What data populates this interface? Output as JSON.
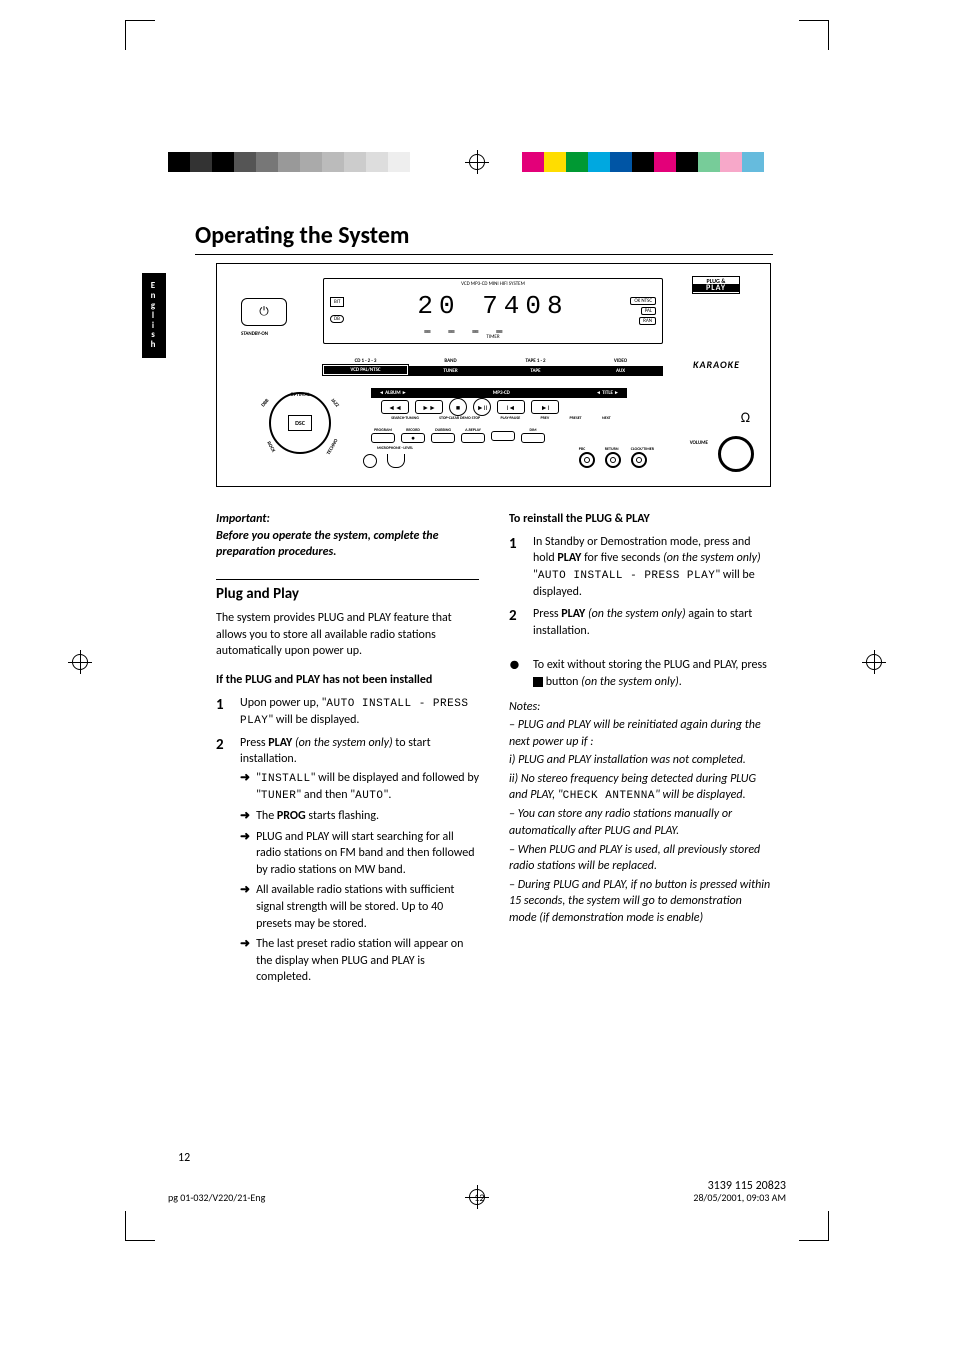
{
  "page": {
    "title": "Operating the System",
    "language_tab": "English",
    "page_number": "12",
    "footer_left": "pg 01-032/V220/21-Eng",
    "footer_center": "12",
    "footer_right": "28/05/2001, 09:03 AM",
    "doc_code": "3139 115 20823"
  },
  "colorbar_left": [
    "#000000",
    "#333333",
    "#000000",
    "#555555",
    "#777777",
    "#999999",
    "#aaaaaa",
    "#bbbbbb",
    "#cccccc",
    "#dddddd",
    "#eeeeee",
    "#ffffff"
  ],
  "colorbar_right": [
    "#e30079",
    "#ffdd00",
    "#009933",
    "#00a8e0",
    "#0055a5",
    "#000000",
    "#e30079",
    "#000000",
    "#77cc99",
    "#f7a8c9",
    "#66bbdd",
    "#ffffff"
  ],
  "device": {
    "header": "VCD MP3-CD MINI HIFI SYSTEM",
    "standby": "STANDBY-ON",
    "standby_icon": "⏻",
    "digits": "20  7408",
    "timer": "TIMER",
    "badge_bit": "BIT",
    "badge_db": "DB",
    "badge_ok_ntsc": "OK NTSC",
    "badge_pal": "PAL",
    "badge_ran": "RAN",
    "plugplay_top": "PLUG &",
    "plugplay_bot": "PLAY",
    "row1": [
      {
        "top": "CD 1 · 2 · 3",
        "main": "",
        "sub": "VCD PAL/NTSC"
      },
      {
        "top": "BAND",
        "main": "TUNER",
        "sub": ""
      },
      {
        "top": "TAPE 1 · 2",
        "main": "TAPE",
        "sub": ""
      },
      {
        "top": "VIDEO",
        "main": "AUX",
        "sub": ""
      }
    ],
    "karaoke": "KARAOKE",
    "mp3_left": "◄ ALBUM ►",
    "mp3_center": "MP3-CD",
    "mp3_right": "◄ TITLE ►",
    "transport": [
      "◄◄",
      "►►",
      "■",
      "►II",
      "I◄",
      "►I"
    ],
    "trans_labels": [
      "SEARCH·TUNING",
      "STOP·CLEAR DEMO STOP",
      "PLAY·PAUSE",
      "PREV",
      "PRESET",
      "NEXT"
    ],
    "prog_labels": [
      "PROGRAM",
      "RECORD",
      "DUBBING",
      "A.REPLAY",
      "",
      "DIM"
    ],
    "mic": "MICROPHONE · LEVEL",
    "dsc": {
      "center": "DSC",
      "top": "OPTIMAL",
      "tl": "DBB",
      "tr": "JAZZ",
      "bl": "ROCK",
      "br": "TECHNO",
      "bot": ""
    },
    "pbc": "PBC",
    "return": "RETURN",
    "clock": "CLOCK/TIMER",
    "volume": "VOLUME",
    "omega": "Ω"
  },
  "left_col": {
    "important_label": "Important:",
    "important_text": "Before you operate the system, complete the preparation procedures.",
    "h2": "Plug and Play",
    "intro": "The system provides PLUG and PLAY feature that allows you to store all available radio stations automatically upon power up.",
    "sub1": "If the PLUG and PLAY has not been installed",
    "step1_num": "1",
    "step1_a": "Upon power up, \"",
    "step1_disp": "AUTO INSTALL - PRESS PLAY",
    "step1_b": "\" will be displayed.",
    "step2_num": "2",
    "step2_a": "Press ",
    "step2_bold": "PLAY",
    "step2_b": " (on the system only)",
    "step2_c": " to start installation.",
    "arr1_a": "\"",
    "arr1_disp": "INSTALL",
    "arr1_b": "\" will be displayed and followed by \"",
    "arr1_disp2": "TUNER",
    "arr1_c": "\" and then \"",
    "arr1_disp3": "AUTO",
    "arr1_d": "\".",
    "arr2_a": "The ",
    "arr2_bold": "PROG",
    "arr2_b": " starts flashing.",
    "arr3": "PLUG and PLAY will start searching for all radio stations on FM band and then followed by radio stations on MW band.",
    "arr4": "All available radio stations with sufficient signal strength will be stored. Up to 40 presets may be stored.",
    "arr5": "The last preset radio station will appear on the display when PLUG and PLAY is completed."
  },
  "right_col": {
    "sub1": "To reinstall the PLUG & PLAY",
    "step1_num": "1",
    "step1_a": "In ",
    "step1_b1": "Standby",
    "step1_c": " or ",
    "step1_b2": "Demostration",
    "step1_d": " mode, press and hold ",
    "step1_bold": "PLAY",
    "step1_e": " for five seconds ",
    "step1_ital": "(on the system only)",
    "step1_f": " \"",
    "step1_disp": "AUTO INSTALL - PRESS PLAY",
    "step1_g": "\" will be displayed.",
    "step2_num": "2",
    "step2_a": "Press ",
    "step2_bold": "PLAY",
    "step2_b": " (on the system only)",
    "step2_c": " again to start installation.",
    "bullet_a": "To exit without storing the PLUG and PLAY, press ",
    "bullet_b": " button ",
    "bullet_ital": "(on the system only)",
    "bullet_c": ".",
    "notes_label": "Notes:",
    "n1": "–   PLUG and PLAY will be reinitiated again during the next power up if :",
    "n1a": "    i) PLUG and PLAY installation was not completed.",
    "n1b_a": "    ii) No stereo frequency being detected during PLUG and PLAY, \"",
    "n1b_disp": "CHECK ANTENNA",
    "n1b_b": "\" will be displayed.",
    "n2": "–   You can store any radio stations manually or automatically after PLUG and PLAY.",
    "n3": "–   When PLUG and PLAY is used, all previously stored radio stations will be replaced.",
    "n4": "–   During PLUG and PLAY, if no button is pressed within 15 seconds, the system will go to demonstration mode (if demonstration mode is enable)"
  }
}
